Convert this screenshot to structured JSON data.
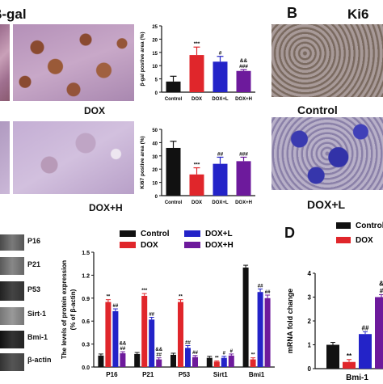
{
  "panel_letters": {
    "b": "B",
    "d": "D"
  },
  "headers": {
    "beta_gal": "β-gal",
    "ki67": "Ki6"
  },
  "micrograph_labels": {
    "dox": "DOX",
    "dox_h": "DOX+H",
    "control": "Control",
    "dox_l": "DOX+L"
  },
  "blot_labels": [
    "P16",
    "P21",
    "P53",
    "Sirt-1",
    "Bmi-1",
    "β-actin"
  ],
  "colors": {
    "control": "#111111",
    "dox": "#e0262b",
    "dox_l": "#2323c8",
    "dox_h": "#6d1a9c"
  },
  "chart_data": [
    {
      "id": "beta-gal-chart",
      "type": "bar",
      "ylabel": "β-gal postive area (%)",
      "ylim": [
        0,
        25
      ],
      "yticks": [
        "0",
        "5",
        "10",
        "15",
        "20",
        "25"
      ],
      "categories": [
        "Control",
        "DOX",
        "DOX+L",
        "DOX+H"
      ],
      "values": [
        4,
        14,
        11.5,
        8
      ],
      "errors": [
        2,
        3,
        2,
        0.5
      ],
      "annotations": [
        "",
        "***",
        "#",
        "&&\n###"
      ]
    },
    {
      "id": "ki67-chart",
      "type": "bar",
      "ylabel": "Ki67 postive area (%)",
      "ylim": [
        0,
        50
      ],
      "yticks": [
        "0",
        "10",
        "20",
        "30",
        "40",
        "50"
      ],
      "categories": [
        "Control",
        "DOX",
        "DOX+L",
        "DOX+H"
      ],
      "values": [
        36,
        16,
        24,
        26
      ],
      "errors": [
        5,
        5,
        5,
        3
      ],
      "annotations": [
        "",
        "***",
        "##",
        "###"
      ]
    },
    {
      "id": "protein-chart",
      "type": "bar",
      "ylabel": "The levels of protein expression\n(% of β-actin)",
      "ylim": [
        0,
        1.5
      ],
      "yticks": [
        "0.0",
        "0.3",
        "0.6",
        "0.9",
        "1.2",
        "1.5"
      ],
      "categories": [
        "P16",
        "P21",
        "P53",
        "Sirt1",
        "Bmi1"
      ],
      "series": [
        {
          "name": "Control",
          "values": [
            0.15,
            0.17,
            0.16,
            0.12,
            1.3
          ],
          "errors": [
            0.02,
            0.02,
            0.02,
            0.02,
            0.03
          ]
        },
        {
          "name": "DOX",
          "values": [
            0.85,
            0.93,
            0.85,
            0.07,
            0.1
          ],
          "errors": [
            0.03,
            0.03,
            0.03,
            0.01,
            0.02
          ]
        },
        {
          "name": "DOX+L",
          "values": [
            0.73,
            0.62,
            0.25,
            0.12,
            0.98
          ],
          "errors": [
            0.03,
            0.03,
            0.03,
            0.02,
            0.04
          ]
        },
        {
          "name": "DOX+H",
          "values": [
            0.18,
            0.1,
            0.13,
            0.15,
            0.9
          ],
          "errors": [
            0.02,
            0.02,
            0.02,
            0.02,
            0.04
          ]
        }
      ],
      "annotations": [
        [
          "",
          "**",
          "##",
          "&&\n##"
        ],
        [
          "",
          "***",
          "##",
          "&&\n##"
        ],
        [
          "",
          "**",
          "##",
          "##"
        ],
        [
          "",
          "**",
          "#",
          "#"
        ],
        [
          "",
          "**",
          "##",
          "##"
        ]
      ],
      "legend": [
        "Control",
        "DOX+L",
        "DOX",
        "DOX+H"
      ]
    },
    {
      "id": "mrna-chart",
      "type": "bar",
      "ylabel": "mRNA fold change",
      "ylim": [
        0,
        4
      ],
      "yticks": [
        "0",
        "1",
        "2",
        "3",
        "4"
      ],
      "categories": [
        "Bmi-1"
      ],
      "series": [
        {
          "name": "Control",
          "values": [
            1.0
          ]
        },
        {
          "name": "DOX",
          "values": [
            0.28
          ]
        },
        {
          "name": "DOX+L",
          "values": [
            1.45
          ]
        },
        {
          "name": "DOX+H",
          "values": [
            3.0
          ]
        }
      ],
      "annotations": [
        "",
        "**",
        "##",
        "&\n#"
      ],
      "legend": [
        "Control",
        "DOX"
      ]
    }
  ]
}
